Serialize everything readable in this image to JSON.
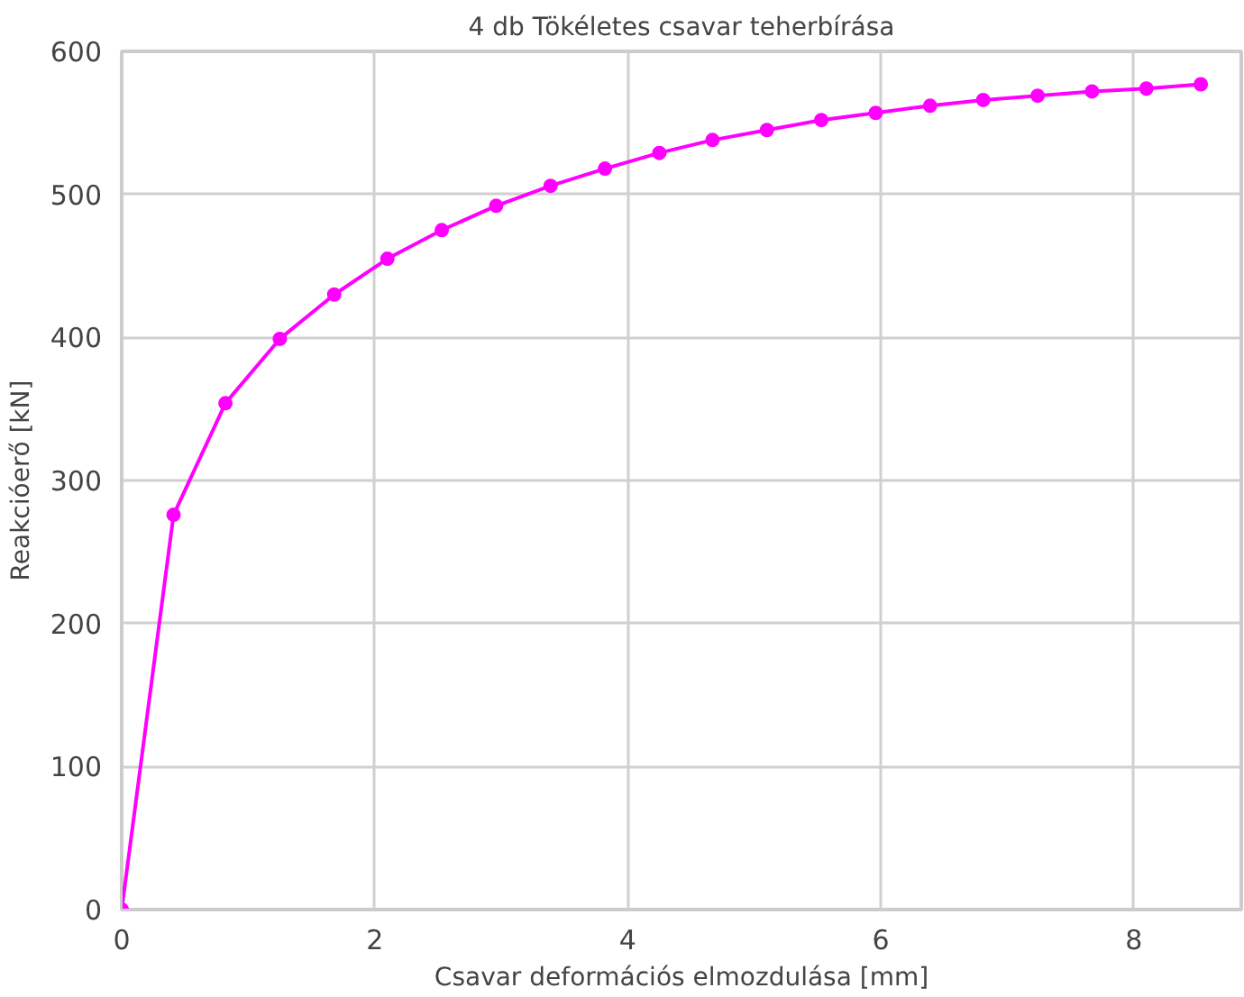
{
  "chart_data": {
    "type": "line",
    "title": "4 db Tökéletes csavar teherbírása",
    "xlabel": "Csavar deformációs elmozdulása [mm]",
    "ylabel": "Reakcióerő [kN]",
    "series": [
      {
        "color": "#ff00ff",
        "x": [
          0,
          0.41,
          0.82,
          1.25,
          1.68,
          2.1,
          2.53,
          2.96,
          3.39,
          3.82,
          4.25,
          4.67,
          5.1,
          5.53,
          5.96,
          6.39,
          6.81,
          7.24,
          7.67,
          8.1,
          8.53
        ],
        "values": [
          0,
          276,
          354,
          399,
          430,
          455,
          475,
          492,
          506,
          518,
          529,
          538,
          545,
          552,
          557,
          562,
          566,
          569,
          572,
          574,
          577
        ]
      }
    ],
    "xlim": [
      0,
      8.85
    ],
    "ylim": [
      0,
      600
    ],
    "xticks": [
      0,
      2,
      4,
      6,
      8
    ],
    "yticks": [
      0,
      100,
      200,
      300,
      400,
      500,
      600
    ],
    "grid": true,
    "marker": "circle",
    "line_style": "solid"
  }
}
